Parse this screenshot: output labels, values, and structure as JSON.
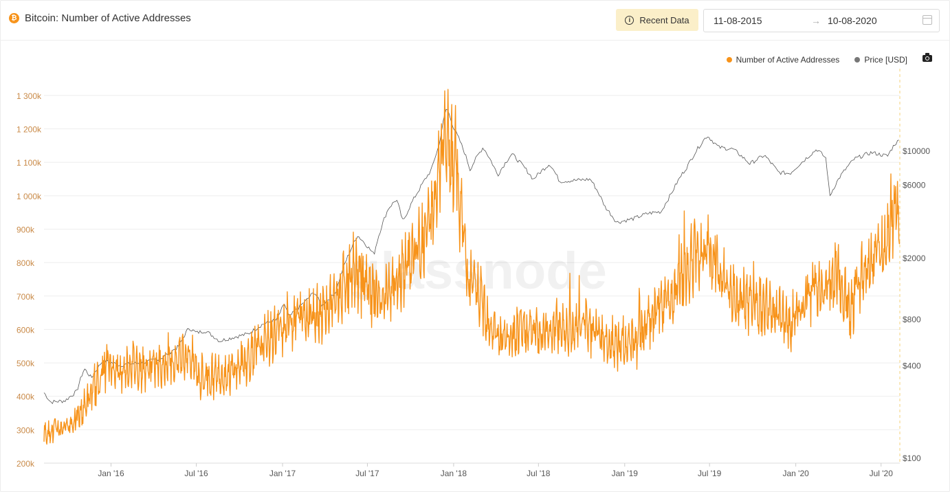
{
  "header": {
    "coin_symbol": "₿",
    "title": "Bitcoin: Number of Active Addresses",
    "recent_label": "Recent Data",
    "date_from": "11-08-2015",
    "date_to": "10-08-2020",
    "arrow": "→"
  },
  "watermark": "glassnode",
  "legend": [
    {
      "name": "Number of Active Addresses",
      "color": "#f7931a"
    },
    {
      "name": "Price [USD]",
      "color": "#777777"
    }
  ],
  "chart_data": {
    "type": "line",
    "x_ticks": [
      "Jan '16",
      "Jul '16",
      "Jan '17",
      "Jul '17",
      "Jan '18",
      "Jul '18",
      "Jan '19",
      "Jul '19",
      "Jan '20",
      "Jul '20"
    ],
    "x_tick_dates": [
      "2016-01-01",
      "2016-07-01",
      "2017-01-01",
      "2017-07-01",
      "2018-01-01",
      "2018-07-01",
      "2019-01-01",
      "2019-07-01",
      "2020-01-01",
      "2020-07-01"
    ],
    "x_range": [
      "2015-08-11",
      "2020-08-10"
    ],
    "y_left": {
      "ticks": [
        200000,
        300000,
        400000,
        500000,
        600000,
        700000,
        800000,
        900000,
        1000000,
        1100000,
        1200000,
        1300000
      ],
      "tick_labels": [
        "200k",
        "300k",
        "400k",
        "500k",
        "600k",
        "700k",
        "800k",
        "900k",
        "1 000k",
        "1 100k",
        "1 200k",
        "1 300k"
      ],
      "range": [
        200000,
        1380000
      ]
    },
    "y_right": {
      "scale": "log",
      "ticks": [
        100,
        400,
        800,
        2000,
        6000,
        10000
      ],
      "tick_labels": [
        "$100",
        "$400",
        "$800",
        "$2000",
        "$6000",
        "$10000"
      ]
    },
    "grid": true,
    "legend_position": "top-right",
    "series": [
      {
        "name": "Number of Active Addresses",
        "color": "#f7931a",
        "axis": "left",
        "dates": [
          "2015-08-11",
          "2015-09-15",
          "2015-10-20",
          "2015-11-10",
          "2015-12-01",
          "2015-12-25",
          "2016-01-20",
          "2016-02-15",
          "2016-03-15",
          "2016-04-15",
          "2016-05-15",
          "2016-06-15",
          "2016-07-10",
          "2016-08-10",
          "2016-09-10",
          "2016-10-10",
          "2016-11-10",
          "2016-12-10",
          "2017-01-05",
          "2017-02-05",
          "2017-03-05",
          "2017-04-05",
          "2017-05-05",
          "2017-06-01",
          "2017-06-25",
          "2017-07-20",
          "2017-08-15",
          "2017-09-10",
          "2017-10-05",
          "2017-11-01",
          "2017-11-25",
          "2017-12-15",
          "2018-01-05",
          "2018-02-01",
          "2018-02-25",
          "2018-03-20",
          "2018-04-15",
          "2018-05-10",
          "2018-06-05",
          "2018-07-01",
          "2018-07-25",
          "2018-08-20",
          "2018-09-15",
          "2018-10-10",
          "2018-11-05",
          "2018-12-01",
          "2018-12-25",
          "2019-01-20",
          "2019-02-15",
          "2019-03-15",
          "2019-04-10",
          "2019-05-05",
          "2019-06-01",
          "2019-06-25",
          "2019-07-20",
          "2019-08-15",
          "2019-09-10",
          "2019-10-05",
          "2019-11-01",
          "2019-11-25",
          "2019-12-20",
          "2020-01-15",
          "2020-02-10",
          "2020-03-05",
          "2020-03-30",
          "2020-04-25",
          "2020-05-20",
          "2020-06-15",
          "2020-07-10",
          "2020-08-01",
          "2020-08-10"
        ],
        "values": [
          290000,
          305000,
          330000,
          380000,
          430000,
          500000,
          470000,
          500000,
          480000,
          490000,
          510000,
          530000,
          450000,
          460000,
          470000,
          500000,
          540000,
          580000,
          620000,
          640000,
          640000,
          660000,
          710000,
          780000,
          730000,
          680000,
          700000,
          760000,
          820000,
          870000,
          1000000,
          1170000,
          1100000,
          760000,
          700000,
          620000,
          560000,
          580000,
          600000,
          590000,
          600000,
          610000,
          600000,
          620000,
          590000,
          560000,
          540000,
          560000,
          600000,
          660000,
          700000,
          760000,
          820000,
          860000,
          760000,
          700000,
          680000,
          700000,
          650000,
          640000,
          620000,
          660000,
          740000,
          720000,
          760000,
          660000,
          760000,
          820000,
          850000,
          1000000,
          920000
        ],
        "noise_amplitude_relative": 0.09
      },
      {
        "name": "Price [USD]",
        "color": "#777777",
        "axis": "right",
        "dates": [
          "2015-08-11",
          "2015-08-25",
          "2015-09-25",
          "2015-10-20",
          "2015-11-05",
          "2015-11-20",
          "2015-12-15",
          "2016-01-20",
          "2016-02-20",
          "2016-03-20",
          "2016-04-20",
          "2016-05-25",
          "2016-06-15",
          "2016-07-01",
          "2016-07-20",
          "2016-08-20",
          "2016-09-20",
          "2016-10-20",
          "2016-11-20",
          "2016-12-20",
          "2017-01-05",
          "2017-01-15",
          "2017-02-20",
          "2017-03-10",
          "2017-03-25",
          "2017-04-25",
          "2017-05-25",
          "2017-06-10",
          "2017-07-15",
          "2017-08-15",
          "2017-09-01",
          "2017-09-15",
          "2017-10-20",
          "2017-11-15",
          "2017-12-01",
          "2017-12-17",
          "2018-01-01",
          "2018-02-05",
          "2018-03-05",
          "2018-04-05",
          "2018-05-05",
          "2018-06-20",
          "2018-07-25",
          "2018-08-15",
          "2018-09-20",
          "2018-10-20",
          "2018-11-20",
          "2018-12-15",
          "2019-01-20",
          "2019-02-20",
          "2019-03-20",
          "2019-04-10",
          "2019-05-15",
          "2019-06-26",
          "2019-07-20",
          "2019-08-20",
          "2019-09-25",
          "2019-10-26",
          "2019-11-25",
          "2019-12-20",
          "2020-01-20",
          "2020-02-15",
          "2020-03-05",
          "2020-03-13",
          "2020-04-05",
          "2020-05-05",
          "2020-06-10",
          "2020-07-15",
          "2020-07-30",
          "2020-08-10"
        ],
        "values": [
          265,
          230,
          235,
          270,
          380,
          330,
          430,
          400,
          410,
          420,
          450,
          530,
          700,
          650,
          670,
          575,
          610,
          640,
          740,
          790,
          1000,
          820,
          1050,
          1200,
          970,
          1200,
          2200,
          2800,
          2100,
          4200,
          4800,
          3400,
          5600,
          7500,
          10800,
          19000,
          14000,
          7500,
          10500,
          6900,
          9500,
          6500,
          8200,
          6300,
          6400,
          6500,
          4300,
          3400,
          3600,
          3900,
          4000,
          5200,
          7900,
          12500,
          10500,
          10200,
          8200,
          9300,
          7200,
          7100,
          8700,
          10200,
          8900,
          5000,
          6800,
          8800,
          9700,
          9200,
          11000,
          11700
        ]
      }
    ]
  }
}
